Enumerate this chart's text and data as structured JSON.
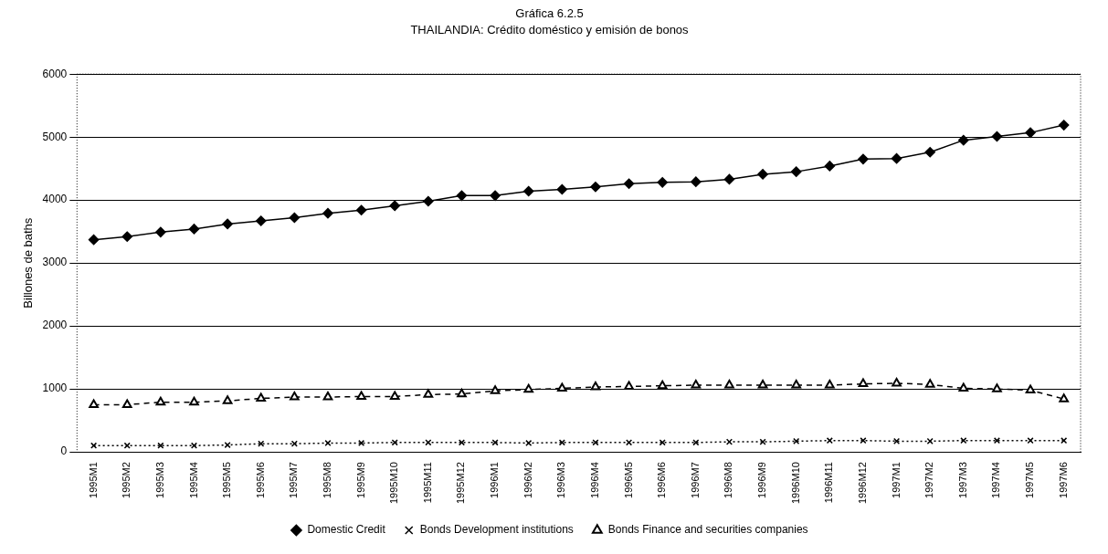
{
  "chart_data": {
    "type": "line",
    "title": "Gráfica 6.2.5",
    "subtitle": "THAILANDIA: Crédito doméstico y emisión de bonos",
    "ylabel": "Billones de baths",
    "categories": [
      "1995M1",
      "1995M2",
      "1995M3",
      "1995M4",
      "1995M5",
      "1995M6",
      "1995M7",
      "1995M8",
      "1995M9",
      "1995M10",
      "1995M11",
      "1995M12",
      "1996M1",
      "1996M2",
      "1996M3",
      "1996M4",
      "1996M5",
      "1996M6",
      "1996M7",
      "1996M8",
      "1996M9",
      "1996M10",
      "1996M11",
      "1996M12",
      "1997M1",
      "1997M2",
      "1997M3",
      "1997M4",
      "1997M5",
      "1997M6"
    ],
    "series": [
      {
        "name": "Domestic Credit",
        "color": "#000000",
        "marker": "diamond",
        "line_style": "solid",
        "values": [
          3370,
          3420,
          3490,
          3540,
          3620,
          3670,
          3720,
          3790,
          3840,
          3910,
          3980,
          4070,
          4070,
          4140,
          4170,
          4210,
          4260,
          4280,
          4290,
          4330,
          4410,
          4450,
          4540,
          4650,
          4660,
          4760,
          4950,
          5010,
          5070,
          5190
        ]
      },
      {
        "name": "Bonds Development institutions",
        "color": "#000000",
        "marker": "cross",
        "line_style": "dotted",
        "values": [
          100,
          100,
          100,
          100,
          110,
          130,
          130,
          140,
          140,
          150,
          150,
          150,
          150,
          140,
          150,
          150,
          150,
          150,
          150,
          160,
          160,
          170,
          180,
          180,
          170,
          170,
          180,
          180,
          180,
          180
        ]
      },
      {
        "name": "Bonds Finance and securities companies",
        "color": "#000000",
        "marker": "triangle",
        "line_style": "dashed",
        "values": [
          750,
          750,
          790,
          790,
          810,
          850,
          870,
          870,
          880,
          880,
          910,
          920,
          970,
          990,
          1010,
          1030,
          1040,
          1050,
          1060,
          1060,
          1060,
          1060,
          1060,
          1080,
          1090,
          1070,
          1010,
          1000,
          980,
          840
        ]
      }
    ],
    "ylim": [
      0,
      6000
    ],
    "yticks": [
      0,
      1000,
      2000,
      3000,
      4000,
      5000,
      6000
    ],
    "grid": "y",
    "legend": "bottom"
  }
}
